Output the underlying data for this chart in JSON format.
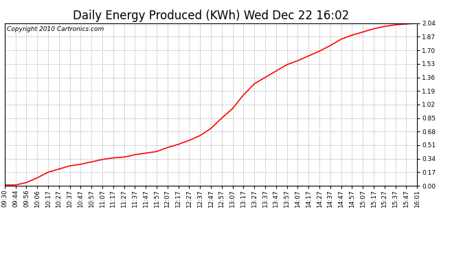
{
  "title": "Daily Energy Produced (KWh) Wed Dec 22 16:02",
  "copyright_text": "Copyright 2010 Cartronics.com",
  "line_color": "#ff0000",
  "bg_color": "#ffffff",
  "plot_bg_color": "#ffffff",
  "grid_color": "#b0b0b0",
  "yticks": [
    0.0,
    0.17,
    0.34,
    0.51,
    0.68,
    0.85,
    1.02,
    1.19,
    1.36,
    1.53,
    1.7,
    1.87,
    2.04
  ],
  "ymin": 0.0,
  "ymax": 2.04,
  "xtick_labels": [
    "09:30",
    "09:44",
    "09:56",
    "10:06",
    "10:17",
    "10:27",
    "10:37",
    "10:47",
    "10:57",
    "11:07",
    "11:17",
    "11:27",
    "11:37",
    "11:47",
    "11:57",
    "12:07",
    "12:17",
    "12:27",
    "12:37",
    "12:47",
    "12:57",
    "13:07",
    "13:17",
    "13:27",
    "13:37",
    "13:47",
    "13:57",
    "14:07",
    "14:17",
    "14:27",
    "14:37",
    "14:47",
    "14:57",
    "15:07",
    "15:17",
    "15:27",
    "15:37",
    "15:47",
    "16:01"
  ],
  "y_values": [
    0.01,
    0.01,
    0.04,
    0.1,
    0.17,
    0.21,
    0.25,
    0.27,
    0.3,
    0.33,
    0.35,
    0.36,
    0.39,
    0.41,
    0.43,
    0.48,
    0.52,
    0.57,
    0.63,
    0.72,
    0.85,
    0.97,
    1.14,
    1.28,
    1.36,
    1.44,
    1.52,
    1.57,
    1.63,
    1.69,
    1.76,
    1.84,
    1.89,
    1.93,
    1.97,
    2.0,
    2.02,
    2.03,
    2.04
  ],
  "title_fontsize": 12,
  "tick_fontsize": 6.5,
  "copyright_fontsize": 6.5,
  "line_width": 1.2
}
